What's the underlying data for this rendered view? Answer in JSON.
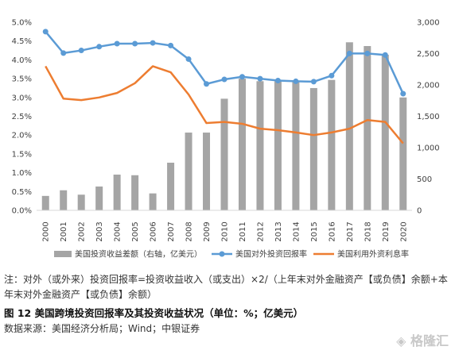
{
  "chart_data": {
    "type": "bar",
    "categories": [
      "2000",
      "2001",
      "2002",
      "2003",
      "2004",
      "2005",
      "2006",
      "2007",
      "2008",
      "2009",
      "2010",
      "2011",
      "2012",
      "2013",
      "2014",
      "2015",
      "2016",
      "2017",
      "2018",
      "2019",
      "2020"
    ],
    "left_axis_ticks": [
      "0.0%",
      "0.5%",
      "1.0%",
      "1.5%",
      "2.0%",
      "2.5%",
      "3.0%",
      "3.5%",
      "4.0%",
      "4.5%",
      "5.0%"
    ],
    "right_axis_ticks": [
      "0",
      "500",
      "1,000",
      "1,500",
      "2,000",
      "2,500",
      "3,000"
    ],
    "ylim_left": [
      0,
      5
    ],
    "ylim_right": [
      0,
      3000
    ],
    "series": [
      {
        "name": "美国投资收益差额（右轴，亿美元）",
        "type": "bar",
        "axis": "right",
        "color": "#a5a5a5",
        "values": [
          230,
          320,
          250,
          380,
          570,
          560,
          270,
          760,
          1240,
          1240,
          1780,
          2100,
          2060,
          2060,
          2060,
          1950,
          2080,
          2680,
          2620,
          2480,
          1800
        ]
      },
      {
        "name": "美国对外投资回报率",
        "type": "line",
        "axis": "left",
        "color": "#5b9bd5",
        "values": [
          4.75,
          4.18,
          4.25,
          4.35,
          4.43,
          4.43,
          4.45,
          4.38,
          4.02,
          3.36,
          3.48,
          3.55,
          3.5,
          3.45,
          3.43,
          3.42,
          3.58,
          4.17,
          4.17,
          4.13,
          3.1
        ]
      },
      {
        "name": "美国利用外资利息率",
        "type": "line",
        "axis": "left",
        "color": "#ed7d31",
        "values": [
          3.83,
          2.97,
          2.93,
          3.0,
          3.12,
          3.38,
          3.83,
          3.67,
          3.08,
          2.32,
          2.35,
          2.3,
          2.17,
          2.13,
          2.07,
          2.0,
          2.07,
          2.17,
          2.4,
          2.35,
          1.78
        ]
      }
    ],
    "grid": false,
    "legend_position": "bottom"
  },
  "note": "注：对外（或外来）投资回报率=投资收益收入（或支出）×2/（上年末对外金融资产【或负债】余额+本年末对外金融资产【或负债】余额）",
  "caption": "图 12  美国跨境投资回报率及其投资收益状况（单位：%；亿美元）",
  "source": "数据来源：美国经济分析局；Wind；中银证券",
  "watermark": "格隆汇"
}
